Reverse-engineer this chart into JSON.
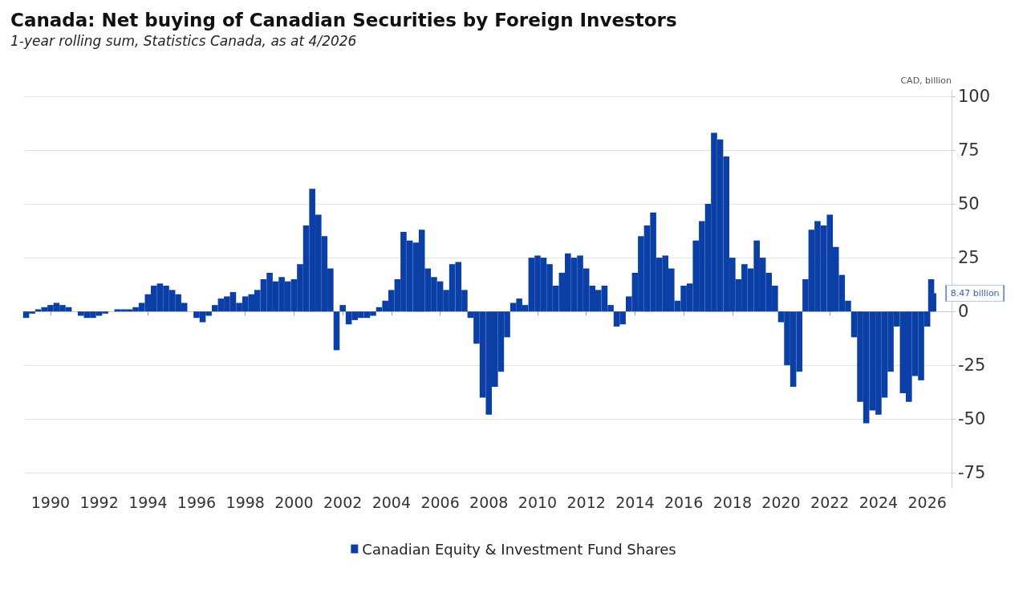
{
  "chart_data": {
    "type": "bar",
    "title": "Canada: Net buying of Canadian Securities by Foreign Investors",
    "subtitle": "1-year rolling sum, Statistics Canada, as at 4/2026",
    "ylabel": "CAD, billion",
    "x": [
      "1989-01",
      "1989-04",
      "1989-07",
      "1989-10",
      "1990-01",
      "1990-04",
      "1990-07",
      "1990-10",
      "1991-01",
      "1991-04",
      "1991-07",
      "1991-10",
      "1992-01",
      "1992-04",
      "1992-07",
      "1992-10",
      "1993-01",
      "1993-04",
      "1993-07",
      "1993-10",
      "1994-01",
      "1994-04",
      "1994-07",
      "1994-10",
      "1995-01",
      "1995-04",
      "1995-07",
      "1995-10",
      "1996-01",
      "1996-04",
      "1996-07",
      "1996-10",
      "1997-01",
      "1997-04",
      "1997-07",
      "1997-10",
      "1998-01",
      "1998-04",
      "1998-07",
      "1998-10",
      "1999-01",
      "1999-04",
      "1999-07",
      "1999-10",
      "2000-01",
      "2000-04",
      "2000-07",
      "2000-10",
      "2001-01",
      "2001-04",
      "2001-07",
      "2001-10",
      "2002-01",
      "2002-04",
      "2002-07",
      "2002-10",
      "2003-01",
      "2003-04",
      "2003-07",
      "2003-10",
      "2004-01",
      "2004-04",
      "2004-07",
      "2004-10",
      "2005-01",
      "2005-04",
      "2005-07",
      "2005-10",
      "2006-01",
      "2006-04",
      "2006-07",
      "2006-10",
      "2007-01",
      "2007-04",
      "2007-07",
      "2007-10",
      "2008-01",
      "2008-04",
      "2008-07",
      "2008-10",
      "2009-01",
      "2009-04",
      "2009-07",
      "2009-10",
      "2010-01",
      "2010-04",
      "2010-07",
      "2010-10",
      "2011-01",
      "2011-04",
      "2011-07",
      "2011-10",
      "2012-01",
      "2012-04",
      "2012-07",
      "2012-10",
      "2013-01",
      "2013-04",
      "2013-07",
      "2013-10",
      "2014-01",
      "2014-04",
      "2014-07",
      "2014-10",
      "2015-01",
      "2015-04",
      "2015-07",
      "2015-10",
      "2016-01",
      "2016-04",
      "2016-07",
      "2016-10",
      "2017-01",
      "2017-04",
      "2017-07",
      "2017-10",
      "2018-01",
      "2018-04",
      "2018-07",
      "2018-10",
      "2019-01",
      "2019-04",
      "2019-07",
      "2019-10",
      "2020-01",
      "2020-04",
      "2020-07",
      "2020-10",
      "2021-01",
      "2021-04",
      "2021-07",
      "2021-10",
      "2022-01",
      "2022-04",
      "2022-07",
      "2022-10",
      "2023-01",
      "2023-04",
      "2023-07",
      "2023-10",
      "2024-01",
      "2024-04",
      "2024-07",
      "2024-10",
      "2025-01",
      "2025-04",
      "2025-07",
      "2025-10",
      "2026-01",
      "2026-03",
      "2026-04"
    ],
    "series": [
      {
        "name": "Canadian Equity & Investment Fund Shares",
        "color": "#0b3fa6",
        "values": [
          -3,
          -1,
          1,
          2,
          3,
          4,
          3,
          2,
          0,
          -2,
          -3,
          -3,
          -2,
          -1,
          0,
          1,
          1,
          1,
          2,
          4,
          8,
          12,
          13,
          12,
          10,
          8,
          4,
          0,
          -3,
          -5,
          -2,
          3,
          6,
          7,
          9,
          4,
          7,
          8,
          10,
          15,
          18,
          14,
          16,
          14,
          15,
          22,
          40,
          57,
          45,
          35,
          20,
          -18,
          3,
          -6,
          -4,
          -3,
          -3,
          -2,
          2,
          5,
          10,
          15,
          37,
          33,
          32,
          38,
          20,
          16,
          14,
          10,
          22,
          23,
          10,
          -3,
          -15,
          -40,
          -48,
          -35,
          -28,
          -12,
          4,
          6,
          3,
          25,
          26,
          25,
          22,
          12,
          18,
          27,
          25,
          26,
          20,
          12,
          10,
          12,
          3,
          -7,
          -6,
          7,
          18,
          35,
          40,
          46,
          25,
          26,
          20,
          5,
          12,
          13,
          33,
          42,
          50,
          83,
          80,
          72,
          25,
          15,
          22,
          20,
          33,
          25,
          18,
          12,
          -5,
          -25,
          -35,
          -28,
          15,
          38,
          42,
          40,
          45,
          30,
          17,
          5,
          -12,
          -42,
          -52,
          -46,
          -48,
          -40,
          -28,
          -7,
          -38,
          -42,
          -30,
          -32,
          -7,
          15,
          8.47
        ]
      }
    ],
    "annotations": [
      {
        "text": "8.47 billion",
        "x": "2026-04",
        "y": 8.47
      }
    ],
    "xlim": [
      "1988-12",
      "2027-01"
    ],
    "xticks": [
      "1990",
      "1992",
      "1994",
      "1996",
      "1998",
      "2000",
      "2002",
      "2004",
      "2006",
      "2008",
      "2010",
      "2012",
      "2014",
      "2016",
      "2018",
      "2020",
      "2022",
      "2024",
      "2026"
    ],
    "ylim": [
      -82,
      103
    ],
    "yticks": [
      -75,
      -50,
      -25,
      0,
      25,
      50,
      75,
      100
    ],
    "grid": "y",
    "legend": "bottom"
  }
}
